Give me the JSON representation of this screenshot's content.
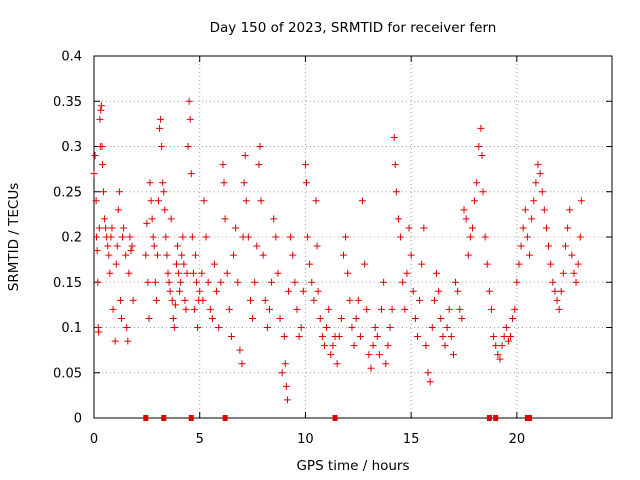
{
  "chart_data": {
    "type": "scatter",
    "title": "Day 150 of 2023, SRMTID for receiver fern",
    "xlabel": "GPS time / hours",
    "ylabel": "SRMTID / TECUs",
    "xlim": [
      0,
      24.5
    ],
    "ylim": [
      0,
      0.4
    ],
    "xticks": [
      0,
      5,
      10,
      15,
      20
    ],
    "xtick_labels": [
      "0",
      "5",
      "10",
      "15",
      "20"
    ],
    "yticks": [
      0,
      0.05,
      0.1,
      0.15,
      0.2,
      0.25,
      0.3,
      0.35,
      0.4
    ],
    "ytick_labels": [
      "0",
      "0.05",
      "0.1",
      "0.15",
      "0.2",
      "0.25",
      "0.3",
      "0.35",
      "0.4"
    ],
    "grid": true,
    "marker": "+",
    "color": "#e00000",
    "series": [
      {
        "points": [
          [
            0.0,
            0.27
          ],
          [
            0.05,
            0.29
          ],
          [
            0.1,
            0.24
          ],
          [
            0.12,
            0.2
          ],
          [
            0.15,
            0.185
          ],
          [
            0.18,
            0.15
          ],
          [
            0.2,
            0.1
          ],
          [
            0.22,
            0.095
          ],
          [
            0.25,
            0.21
          ],
          [
            0.28,
            0.33
          ],
          [
            0.3,
            0.3
          ],
          [
            0.32,
            0.34
          ],
          [
            0.35,
            0.345
          ],
          [
            0.38,
            0.3
          ],
          [
            0.4,
            0.28
          ],
          [
            0.45,
            0.25
          ],
          [
            0.5,
            0.22
          ],
          [
            0.55,
            0.21
          ],
          [
            0.6,
            0.2
          ],
          [
            0.65,
            0.19
          ],
          [
            0.7,
            0.18
          ],
          [
            0.75,
            0.16
          ],
          [
            0.8,
            0.2
          ],
          [
            0.85,
            0.21
          ],
          [
            0.9,
            0.12
          ],
          [
            1.0,
            0.085
          ],
          [
            1.05,
            0.17
          ],
          [
            1.1,
            0.19
          ],
          [
            1.15,
            0.23
          ],
          [
            1.2,
            0.25
          ],
          [
            1.25,
            0.13
          ],
          [
            1.3,
            0.11
          ],
          [
            1.35,
            0.2
          ],
          [
            1.4,
            0.21
          ],
          [
            1.5,
            0.18
          ],
          [
            1.55,
            0.1
          ],
          [
            1.6,
            0.085
          ],
          [
            1.65,
            0.16
          ],
          [
            1.7,
            0.2
          ],
          [
            1.75,
            0.185
          ],
          [
            1.8,
            0.19
          ],
          [
            1.85,
            0.13
          ],
          [
            2.45,
            0.18
          ],
          [
            2.5,
            0.215
          ],
          [
            2.55,
            0.15
          ],
          [
            2.6,
            0.11
          ],
          [
            2.65,
            0.26
          ],
          [
            2.7,
            0.24
          ],
          [
            2.75,
            0.22
          ],
          [
            2.8,
            0.2
          ],
          [
            2.85,
            0.19
          ],
          [
            2.9,
            0.15
          ],
          [
            2.95,
            0.13
          ],
          [
            3.0,
            0.18
          ],
          [
            3.05,
            0.24
          ],
          [
            3.1,
            0.32
          ],
          [
            3.15,
            0.33
          ],
          [
            3.2,
            0.3
          ],
          [
            3.25,
            0.26
          ],
          [
            3.3,
            0.25
          ],
          [
            3.35,
            0.23
          ],
          [
            3.4,
            0.2
          ],
          [
            3.45,
            0.18
          ],
          [
            3.5,
            0.16
          ],
          [
            3.55,
            0.15
          ],
          [
            3.6,
            0.14
          ],
          [
            3.65,
            0.22
          ],
          [
            3.7,
            0.13
          ],
          [
            3.75,
            0.11
          ],
          [
            3.8,
            0.1
          ],
          [
            3.85,
            0.125
          ],
          [
            3.9,
            0.17
          ],
          [
            3.95,
            0.19
          ],
          [
            4.0,
            0.16
          ],
          [
            4.05,
            0.14
          ],
          [
            4.1,
            0.15
          ],
          [
            4.15,
            0.18
          ],
          [
            4.2,
            0.2
          ],
          [
            4.25,
            0.17
          ],
          [
            4.3,
            0.13
          ],
          [
            4.35,
            0.12
          ],
          [
            4.4,
            0.16
          ],
          [
            4.45,
            0.3
          ],
          [
            4.5,
            0.35
          ],
          [
            4.55,
            0.33
          ],
          [
            4.6,
            0.27
          ],
          [
            4.65,
            0.2
          ],
          [
            4.7,
            0.16
          ],
          [
            4.75,
            0.12
          ],
          [
            4.8,
            0.18
          ],
          [
            4.85,
            0.15
          ],
          [
            4.9,
            0.1
          ],
          [
            4.95,
            0.13
          ],
          [
            5.0,
            0.14
          ],
          [
            5.1,
            0.16
          ],
          [
            5.15,
            0.13
          ],
          [
            5.2,
            0.24
          ],
          [
            5.3,
            0.2
          ],
          [
            5.4,
            0.15
          ],
          [
            5.5,
            0.12
          ],
          [
            5.6,
            0.11
          ],
          [
            5.7,
            0.17
          ],
          [
            5.8,
            0.14
          ],
          [
            5.9,
            0.1
          ],
          [
            6.0,
            0.15
          ],
          [
            6.1,
            0.28
          ],
          [
            6.15,
            0.26
          ],
          [
            6.2,
            0.22
          ],
          [
            6.3,
            0.16
          ],
          [
            6.4,
            0.12
          ],
          [
            6.5,
            0.09
          ],
          [
            6.6,
            0.18
          ],
          [
            6.7,
            0.21
          ],
          [
            6.8,
            0.15
          ],
          [
            6.9,
            0.075
          ],
          [
            7.0,
            0.06
          ],
          [
            7.05,
            0.2
          ],
          [
            7.1,
            0.26
          ],
          [
            7.15,
            0.29
          ],
          [
            7.2,
            0.24
          ],
          [
            7.3,
            0.2
          ],
          [
            7.4,
            0.13
          ],
          [
            7.5,
            0.11
          ],
          [
            7.6,
            0.15
          ],
          [
            7.7,
            0.19
          ],
          [
            7.8,
            0.28
          ],
          [
            7.85,
            0.3
          ],
          [
            7.9,
            0.24
          ],
          [
            8.0,
            0.18
          ],
          [
            8.1,
            0.13
          ],
          [
            8.2,
            0.1
          ],
          [
            8.3,
            0.12
          ],
          [
            8.4,
            0.15
          ],
          [
            8.5,
            0.22
          ],
          [
            8.6,
            0.2
          ],
          [
            8.7,
            0.16
          ],
          [
            8.8,
            0.11
          ],
          [
            8.9,
            0.05
          ],
          [
            9.0,
            0.09
          ],
          [
            9.05,
            0.06
          ],
          [
            9.1,
            0.035
          ],
          [
            9.15,
            0.02
          ],
          [
            9.2,
            0.14
          ],
          [
            9.3,
            0.2
          ],
          [
            9.4,
            0.18
          ],
          [
            9.5,
            0.15
          ],
          [
            9.6,
            0.12
          ],
          [
            9.7,
            0.09
          ],
          [
            9.8,
            0.1
          ],
          [
            9.9,
            0.14
          ],
          [
            10.0,
            0.28
          ],
          [
            10.05,
            0.26
          ],
          [
            10.1,
            0.2
          ],
          [
            10.2,
            0.17
          ],
          [
            10.3,
            0.15
          ],
          [
            10.4,
            0.13
          ],
          [
            10.5,
            0.24
          ],
          [
            10.55,
            0.19
          ],
          [
            10.6,
            0.14
          ],
          [
            10.7,
            0.11
          ],
          [
            10.8,
            0.09
          ],
          [
            10.9,
            0.08
          ],
          [
            11.0,
            0.1
          ],
          [
            11.1,
            0.12
          ],
          [
            11.2,
            0.07
          ],
          [
            11.3,
            0.08
          ],
          [
            11.4,
            0.09
          ],
          [
            11.5,
            0.06
          ],
          [
            11.6,
            0.09
          ],
          [
            11.7,
            0.11
          ],
          [
            11.8,
            0.18
          ],
          [
            11.9,
            0.2
          ],
          [
            12.0,
            0.16
          ],
          [
            12.1,
            0.13
          ],
          [
            12.2,
            0.1
          ],
          [
            12.3,
            0.08
          ],
          [
            12.4,
            0.11
          ],
          [
            12.5,
            0.13
          ],
          [
            12.6,
            0.09
          ],
          [
            12.7,
            0.24
          ],
          [
            12.8,
            0.17
          ],
          [
            12.9,
            0.12
          ],
          [
            13.0,
            0.07
          ],
          [
            13.1,
            0.055
          ],
          [
            13.2,
            0.08
          ],
          [
            13.3,
            0.1
          ],
          [
            13.4,
            0.09
          ],
          [
            13.5,
            0.07
          ],
          [
            13.6,
            0.12
          ],
          [
            13.7,
            0.15
          ],
          [
            13.8,
            0.06
          ],
          [
            13.9,
            0.08
          ],
          [
            14.0,
            0.1
          ],
          [
            14.1,
            0.12
          ],
          [
            14.2,
            0.31
          ],
          [
            14.25,
            0.28
          ],
          [
            14.3,
            0.25
          ],
          [
            14.4,
            0.22
          ],
          [
            14.5,
            0.2
          ],
          [
            14.6,
            0.15
          ],
          [
            14.7,
            0.12
          ],
          [
            14.8,
            0.16
          ],
          [
            14.9,
            0.21
          ],
          [
            15.0,
            0.18
          ],
          [
            15.1,
            0.14
          ],
          [
            15.2,
            0.11
          ],
          [
            15.3,
            0.09
          ],
          [
            15.4,
            0.13
          ],
          [
            15.5,
            0.17
          ],
          [
            15.6,
            0.21
          ],
          [
            15.7,
            0.08
          ],
          [
            15.8,
            0.05
          ],
          [
            15.9,
            0.04
          ],
          [
            16.0,
            0.1
          ],
          [
            16.1,
            0.13
          ],
          [
            16.2,
            0.16
          ],
          [
            16.3,
            0.14
          ],
          [
            16.4,
            0.11
          ],
          [
            16.5,
            0.09
          ],
          [
            16.6,
            0.08
          ],
          [
            16.7,
            0.1
          ],
          [
            16.8,
            0.12
          ],
          [
            16.9,
            0.09
          ],
          [
            17.0,
            0.07
          ],
          [
            17.1,
            0.15
          ],
          [
            17.2,
            0.14
          ],
          [
            17.3,
            0.12
          ],
          [
            17.4,
            0.11
          ],
          [
            17.5,
            0.23
          ],
          [
            17.6,
            0.22
          ],
          [
            17.7,
            0.18
          ],
          [
            17.8,
            0.2
          ],
          [
            17.9,
            0.21
          ],
          [
            18.0,
            0.24
          ],
          [
            18.1,
            0.26
          ],
          [
            18.2,
            0.3
          ],
          [
            18.3,
            0.32
          ],
          [
            18.35,
            0.29
          ],
          [
            18.4,
            0.25
          ],
          [
            18.5,
            0.2
          ],
          [
            18.6,
            0.17
          ],
          [
            18.7,
            0.14
          ],
          [
            18.8,
            0.12
          ],
          [
            18.9,
            0.09
          ],
          [
            19.0,
            0.08
          ],
          [
            19.1,
            0.07
          ],
          [
            19.2,
            0.065
          ],
          [
            19.3,
            0.08
          ],
          [
            19.4,
            0.09
          ],
          [
            19.5,
            0.1
          ],
          [
            19.6,
            0.085
          ],
          [
            19.7,
            0.09
          ],
          [
            19.8,
            0.11
          ],
          [
            19.9,
            0.12
          ],
          [
            20.0,
            0.15
          ],
          [
            20.1,
            0.17
          ],
          [
            20.2,
            0.19
          ],
          [
            20.3,
            0.21
          ],
          [
            20.4,
            0.23
          ],
          [
            20.5,
            0.2
          ],
          [
            20.6,
            0.18
          ],
          [
            20.7,
            0.22
          ],
          [
            20.8,
            0.24
          ],
          [
            20.9,
            0.26
          ],
          [
            21.0,
            0.28
          ],
          [
            21.1,
            0.27
          ],
          [
            21.2,
            0.25
          ],
          [
            21.3,
            0.23
          ],
          [
            21.4,
            0.21
          ],
          [
            21.5,
            0.19
          ],
          [
            21.6,
            0.17
          ],
          [
            21.7,
            0.15
          ],
          [
            21.8,
            0.14
          ],
          [
            21.9,
            0.13
          ],
          [
            22.0,
            0.12
          ],
          [
            22.1,
            0.14
          ],
          [
            22.2,
            0.16
          ],
          [
            22.3,
            0.19
          ],
          [
            22.4,
            0.21
          ],
          [
            22.5,
            0.23
          ],
          [
            22.6,
            0.18
          ],
          [
            22.7,
            0.16
          ],
          [
            22.8,
            0.15
          ],
          [
            22.9,
            0.17
          ],
          [
            23.0,
            0.2
          ],
          [
            23.05,
            0.24
          ]
        ]
      }
    ],
    "baseline_markers_x": [
      2.45,
      3.3,
      4.6,
      6.2,
      11.4,
      18.7,
      19.0,
      20.5,
      20.6
    ]
  }
}
